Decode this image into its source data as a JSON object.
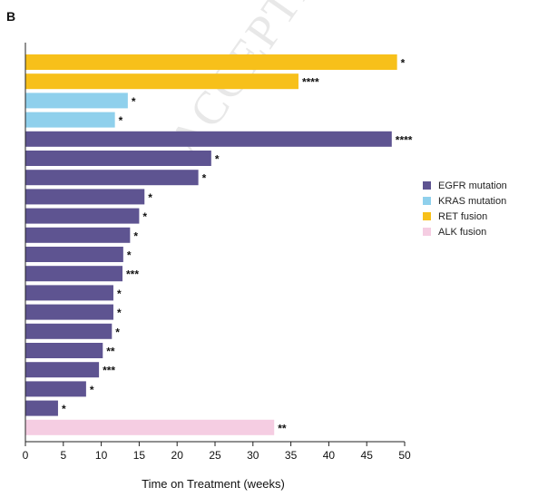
{
  "panel_label": "B",
  "watermark": "ACCEPTED MANUSCRIPT",
  "colors": {
    "EGFR mutation": "#5e5491",
    "KRAS mutation": "#8fd0ec",
    "RET fusion": "#f7c01a",
    "ALK fusion": "#f5cde2"
  },
  "chart_data": {
    "type": "bar",
    "orientation": "horizontal",
    "title": "",
    "xlabel": "Time on Treatment (weeks)",
    "ylabel": "",
    "xlim": [
      0,
      50
    ],
    "xticks": [
      0,
      5,
      10,
      15,
      20,
      25,
      30,
      35,
      40,
      45,
      50
    ],
    "grid": false,
    "legend_position": "right",
    "legend": [
      "EGFR mutation",
      "KRAS mutation",
      "RET fusion",
      "ALK fusion"
    ],
    "bars": [
      {
        "group": "RET fusion",
        "value": 49.0,
        "label": "*"
      },
      {
        "group": "RET fusion",
        "value": 36.0,
        "label": "****"
      },
      {
        "group": "KRAS mutation",
        "value": 13.5,
        "label": "*"
      },
      {
        "group": "KRAS mutation",
        "value": 11.8,
        "label": "*"
      },
      {
        "group": "EGFR mutation",
        "value": 48.3,
        "label": "****"
      },
      {
        "group": "EGFR mutation",
        "value": 24.5,
        "label": "*"
      },
      {
        "group": "EGFR mutation",
        "value": 22.8,
        "label": "*"
      },
      {
        "group": "EGFR mutation",
        "value": 15.7,
        "label": "*"
      },
      {
        "group": "EGFR mutation",
        "value": 15.0,
        "label": "*"
      },
      {
        "group": "EGFR mutation",
        "value": 13.8,
        "label": "*"
      },
      {
        "group": "EGFR mutation",
        "value": 12.9,
        "label": "*"
      },
      {
        "group": "EGFR mutation",
        "value": 12.8,
        "label": "***"
      },
      {
        "group": "EGFR mutation",
        "value": 11.6,
        "label": "*"
      },
      {
        "group": "EGFR mutation",
        "value": 11.6,
        "label": "*"
      },
      {
        "group": "EGFR mutation",
        "value": 11.4,
        "label": "*"
      },
      {
        "group": "EGFR mutation",
        "value": 10.2,
        "label": "**"
      },
      {
        "group": "EGFR mutation",
        "value": 9.7,
        "label": "***"
      },
      {
        "group": "EGFR mutation",
        "value": 8.0,
        "label": "*"
      },
      {
        "group": "EGFR mutation",
        "value": 4.3,
        "label": "*"
      },
      {
        "group": "ALK fusion",
        "value": 32.8,
        "label": "**"
      }
    ]
  }
}
